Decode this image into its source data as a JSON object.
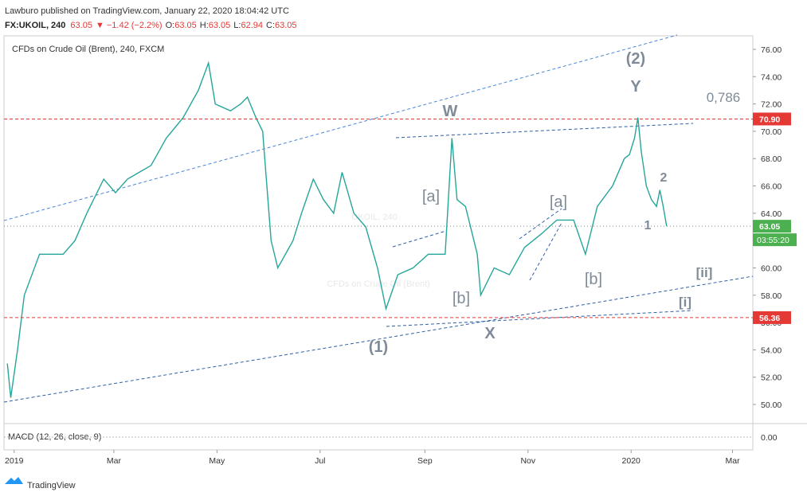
{
  "header": {
    "publisher": "Lawburo published on TradingView.com, January 22, 2020 18:04:42 UTC",
    "symbol": "FX:UKOIL, 240",
    "last": "63.05",
    "change": "▼ −1.42 (−2.2%)",
    "ohlc": [
      {
        "label": "O:",
        "value": "63.05"
      },
      {
        "label": "H:",
        "value": "63.05"
      },
      {
        "label": "L:",
        "value": "62.94"
      },
      {
        "label": "C:",
        "value": "63.05"
      }
    ]
  },
  "chart_data": {
    "type": "line",
    "title": "CFDs on Crude Oil (Brent), 240, FXCM",
    "watermark": [
      "UKOIL, 240",
      "CFDs on Crude Oil (Brent)"
    ],
    "x": [
      -4,
      -2,
      2,
      6,
      15,
      29,
      36,
      43,
      53,
      60,
      67,
      74,
      81,
      90,
      100,
      109,
      115,
      119,
      128,
      134,
      138,
      143,
      147,
      152,
      156,
      165,
      170,
      177,
      183,
      189,
      194,
      201,
      208,
      215,
      220,
      227,
      236,
      245,
      255,
      259,
      262,
      267,
      274,
      276,
      284,
      293,
      302,
      312,
      321,
      331,
      338,
      345,
      354,
      361,
      364,
      367,
      369,
      371,
      374,
      377,
      380,
      382,
      384,
      386
    ],
    "series": [
      {
        "name": "UKOIL",
        "color": "#26a69a",
        "values": [
          53,
          50.5,
          54,
          58,
          61,
          61,
          62,
          64,
          66.5,
          65.5,
          66.5,
          67,
          67.5,
          69.5,
          71,
          73,
          75,
          72,
          71.5,
          72,
          72.5,
          71,
          70,
          62,
          60,
          62,
          64,
          66.5,
          65,
          64,
          67,
          64,
          63,
          60,
          57,
          59.5,
          60,
          61,
          61,
          69.5,
          65,
          64.5,
          61,
          58,
          60,
          59.5,
          61.5,
          62.5,
          63.5,
          63.5,
          61,
          64.5,
          66,
          68,
          68.3,
          69.5,
          71,
          68.5,
          66,
          65,
          64.5,
          65.7,
          64.5,
          63.05
        ]
      }
    ],
    "xlim": [
      -6,
      437
    ],
    "xticks": [
      {
        "value": 0,
        "label": "2019"
      },
      {
        "value": 59,
        "label": "Mar"
      },
      {
        "value": 120,
        "label": "May"
      },
      {
        "value": 181,
        "label": "Jul"
      },
      {
        "value": 243,
        "label": "Sep"
      },
      {
        "value": 304,
        "label": "Nov"
      },
      {
        "value": 365,
        "label": "2020"
      },
      {
        "value": 425,
        "label": "Mar"
      }
    ],
    "ylim": [
      48.72,
      77.28
    ],
    "yticks": [
      {
        "value": 50,
        "label": "50.00"
      },
      {
        "value": 52,
        "label": "52.00"
      },
      {
        "value": 54,
        "label": "54.00"
      },
      {
        "value": 56,
        "label": "56.00"
      },
      {
        "value": 58,
        "label": "58.00"
      },
      {
        "value": 60,
        "label": "60.00"
      },
      {
        "value": 62,
        "label": "62.00"
      },
      {
        "value": 64,
        "label": "64.00"
      },
      {
        "value": 66,
        "label": "66.00"
      },
      {
        "value": 68,
        "label": "68.00"
      },
      {
        "value": 70,
        "label": "70.00"
      },
      {
        "value": 72,
        "label": "72.00"
      },
      {
        "value": 74,
        "label": "74.00"
      },
      {
        "value": 76,
        "label": "76.00"
      }
    ],
    "hlines": [
      {
        "value": 70.9,
        "label": "70.90",
        "color": "#e53935"
      },
      {
        "value": 56.36,
        "label": "56.36",
        "color": "#e53935"
      }
    ],
    "last_price": {
      "value": 63.05,
      "label": "63.05",
      "countdown": "03:55:20",
      "color": "#4caf50"
    },
    "annotations": [
      "(2)",
      "Y",
      "W",
      "0,786",
      "2",
      "1",
      "[a]",
      "[a]",
      "[b]",
      "[b]",
      "(1)",
      "X",
      "[ii]",
      "[i]"
    ],
    "macd": {
      "label": "MACD (12, 26, close, 9)",
      "yticks": [
        {
          "value": 0,
          "label": "0.00"
        }
      ]
    }
  },
  "footer": {
    "brand": "TradingView"
  }
}
